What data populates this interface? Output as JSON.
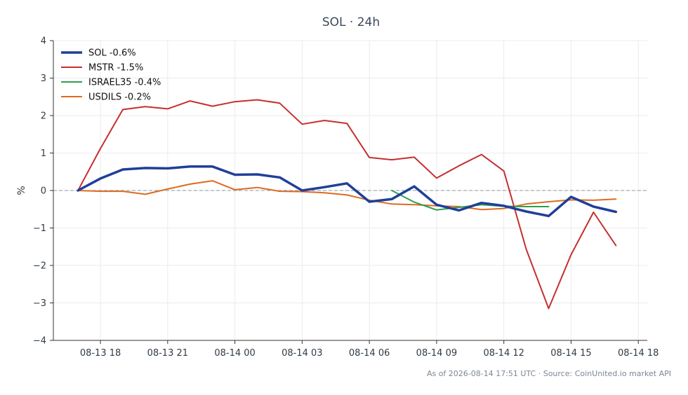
{
  "chart_data": {
    "type": "line",
    "title": "SOL · 24h",
    "xlabel": "",
    "ylabel": "%",
    "x_ticks": [
      "08-13 18",
      "08-13 21",
      "08-14 00",
      "08-14 03",
      "08-14 06",
      "08-14 09",
      "08-14 12",
      "08-14 15",
      "08-14 18"
    ],
    "x_tick_hours": [
      18,
      21,
      24,
      27,
      30,
      33,
      36,
      39,
      42
    ],
    "xlim_hours": [
      15.9,
      42.4
    ],
    "ylim": [
      -4,
      4
    ],
    "y_ticks": [
      4,
      3,
      2,
      1,
      0,
      -1,
      -2,
      -3,
      -4
    ],
    "y_tick_labels": [
      "4",
      "3",
      "2",
      "1",
      "0",
      "−1",
      "−2",
      "−3",
      "−4"
    ],
    "grid": true,
    "zero_line": true,
    "legend_position": "top-left",
    "series": [
      {
        "name": "SOL -0.6%",
        "color": "#1f3f99",
        "width": 3.5,
        "x_hours": [
          17,
          18,
          19,
          20,
          21,
          22,
          23,
          24,
          25,
          26,
          27,
          28,
          29,
          30,
          31,
          32,
          33,
          34,
          35,
          36,
          37,
          38,
          39,
          40,
          41
        ],
        "values": [
          0,
          0.32,
          0.56,
          0.6,
          0.59,
          0.64,
          0.64,
          0.42,
          0.43,
          0.35,
          0,
          0.09,
          0.19,
          -0.3,
          -0.23,
          0.11,
          -0.38,
          -0.53,
          -0.33,
          -0.41,
          -0.56,
          -0.68,
          -0.17,
          -0.43,
          -0.57
        ]
      },
      {
        "name": "MSTR -1.5%",
        "color": "#c62f2f",
        "width": 2,
        "x_hours": [
          17,
          18,
          19,
          20,
          21,
          22,
          23,
          24,
          25,
          26,
          27,
          28,
          29,
          30,
          31,
          32,
          33,
          34,
          35,
          36,
          37,
          38,
          39,
          40,
          41
        ],
        "values": [
          0,
          1.12,
          2.16,
          2.24,
          2.18,
          2.39,
          2.25,
          2.37,
          2.42,
          2.33,
          1.77,
          1.87,
          1.79,
          0.88,
          0.82,
          0.89,
          0.33,
          0.66,
          0.96,
          0.52,
          -1.57,
          -3.15,
          -1.71,
          -0.58,
          -1.47
        ]
      },
      {
        "name": "ISRAEL35 -0.4%",
        "color": "#2ca04c",
        "width": 2,
        "x_hours": [
          31,
          32,
          33,
          34,
          35,
          36,
          37,
          38
        ],
        "values": [
          0,
          -0.31,
          -0.52,
          -0.45,
          -0.38,
          -0.42,
          -0.43,
          -0.43
        ]
      },
      {
        "name": "USDILS -0.2%",
        "color": "#dd6b20",
        "width": 2,
        "x_hours": [
          17,
          18,
          19,
          20,
          21,
          22,
          23,
          24,
          25,
          26,
          27,
          28,
          29,
          30,
          31,
          32,
          33,
          34,
          35,
          36,
          37,
          38,
          39,
          40,
          41
        ],
        "values": [
          0,
          -0.02,
          -0.02,
          -0.1,
          0.04,
          0.17,
          0.26,
          0.02,
          0.08,
          -0.02,
          -0.03,
          -0.06,
          -0.12,
          -0.26,
          -0.36,
          -0.38,
          -0.41,
          -0.43,
          -0.51,
          -0.48,
          -0.36,
          -0.3,
          -0.25,
          -0.26,
          -0.23
        ]
      }
    ]
  },
  "footer": {
    "text": "As of 2026-08-14 17:51 UTC · Source: CoinUnited.io market API"
  }
}
